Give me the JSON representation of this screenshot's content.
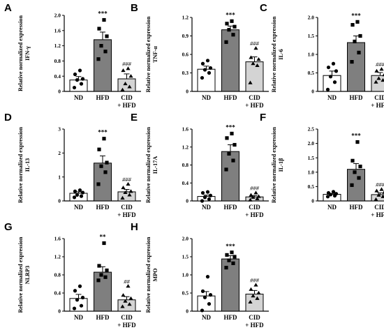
{
  "categories": [
    {
      "line1": "ND",
      "line2": ""
    },
    {
      "line1": "HFD",
      "line2": ""
    },
    {
      "line1": "CID",
      "line2": "+ HFD"
    }
  ],
  "colors": {
    "bar_nd": "#ffffff",
    "bar_hfd": "#7f7f7f",
    "bar_cid": "#d4d4d4",
    "stroke": "#000000"
  },
  "markers": [
    "circle",
    "square",
    "triangle"
  ],
  "chart_data": [
    {
      "panel": "A",
      "type": "bar",
      "ylabel_main": "Relative normalized expression",
      "ylabel_gene": "IFN-γ",
      "ylim": [
        0,
        2.0
      ],
      "yticks": [
        "0",
        "0.4",
        "0.8",
        "1.2",
        "1.6",
        "2.0"
      ],
      "ytick_values": [
        0,
        0.4,
        0.8,
        1.2,
        1.6,
        2.0
      ],
      "values": [
        0.3,
        1.36,
        0.33
      ],
      "errors": [
        0.09,
        0.2,
        0.13
      ],
      "points": [
        [
          0.1,
          0.2,
          0.3,
          0.33,
          0.45,
          0.55
        ],
        [
          0.85,
          1.05,
          1.2,
          1.45,
          1.65,
          1.88
        ],
        [
          0.04,
          0.12,
          0.2,
          0.4,
          0.55,
          0.6
        ]
      ],
      "significance": [
        "",
        "***",
        "###"
      ]
    },
    {
      "panel": "B",
      "type": "bar",
      "ylabel_main": "Relative normalized expression",
      "ylabel_gene": "TNF-α",
      "ylim": [
        0,
        1.2
      ],
      "yticks": [
        "0",
        "0.3",
        "0.6",
        "0.9",
        "1.2"
      ],
      "ytick_values": [
        0,
        0.3,
        0.6,
        0.9,
        1.2
      ],
      "values": [
        0.36,
        1.0,
        0.48
      ],
      "errors": [
        0.05,
        0.06,
        0.08
      ],
      "points": [
        [
          0.22,
          0.3,
          0.35,
          0.38,
          0.45,
          0.5
        ],
        [
          0.8,
          0.92,
          1.0,
          1.05,
          1.1,
          1.14
        ],
        [
          0.14,
          0.42,
          0.45,
          0.52,
          0.55,
          0.7
        ]
      ],
      "significance": [
        "",
        "***",
        "###"
      ]
    },
    {
      "panel": "C",
      "type": "bar",
      "ylabel_main": "Relative normalized expression",
      "ylabel_gene": "IL-6",
      "ylim": [
        0,
        2.0
      ],
      "yticks": [
        "0",
        "0.5",
        "1.0",
        "1.5",
        "2.0"
      ],
      "ytick_values": [
        0,
        0.5,
        1.0,
        1.5,
        2.0
      ],
      "values": [
        0.43,
        1.32,
        0.43
      ],
      "errors": [
        0.12,
        0.18,
        0.08
      ],
      "points": [
        [
          0.05,
          0.25,
          0.4,
          0.55,
          0.65,
          0.75
        ],
        [
          0.8,
          1.05,
          1.35,
          1.5,
          1.8,
          1.88
        ],
        [
          0.25,
          0.3,
          0.35,
          0.45,
          0.55,
          0.6
        ]
      ],
      "significance": [
        "",
        "***",
        "###"
      ]
    },
    {
      "panel": "D",
      "type": "bar",
      "ylabel_main": "Relative normalized expression",
      "ylabel_gene": "IL-13",
      "ylim": [
        0,
        3
      ],
      "yticks": [
        "0",
        "1",
        "2",
        "3"
      ],
      "ytick_values": [
        0,
        1,
        2,
        3
      ],
      "values": [
        0.32,
        1.58,
        0.38
      ],
      "errors": [
        0.06,
        0.3,
        0.1
      ],
      "points": [
        [
          0.15,
          0.2,
          0.25,
          0.35,
          0.4,
          0.45
        ],
        [
          0.7,
          1.2,
          1.45,
          1.6,
          2.15,
          2.6
        ],
        [
          0.12,
          0.25,
          0.35,
          0.4,
          0.55,
          0.7
        ]
      ],
      "significance": [
        "",
        "***",
        "###"
      ]
    },
    {
      "panel": "E",
      "type": "bar",
      "ylabel_main": "Relative normalized expression",
      "ylabel_gene": "IL-17A",
      "ylim": [
        0,
        1.6
      ],
      "yticks": [
        "0",
        "0.4",
        "0.8",
        "1.2",
        "1.6"
      ],
      "ytick_values": [
        0,
        0.4,
        0.8,
        1.2,
        1.6
      ],
      "values": [
        0.1,
        1.1,
        0.09
      ],
      "errors": [
        0.03,
        0.15,
        0.03
      ],
      "points": [
        [
          0.0,
          0.04,
          0.08,
          0.12,
          0.18,
          0.2
        ],
        [
          0.7,
          0.9,
          1.05,
          1.25,
          1.4,
          1.5
        ],
        [
          0.02,
          0.05,
          0.08,
          0.1,
          0.13,
          0.18
        ]
      ],
      "significance": [
        "",
        "***",
        "###"
      ]
    },
    {
      "panel": "F",
      "type": "bar",
      "ylabel_main": "Relative normalized expression",
      "ylabel_gene": "IL-1β",
      "ylim": [
        0,
        2.5
      ],
      "yticks": [
        "0",
        "0.5",
        "1.0",
        "1.5",
        "2.0",
        "2.5"
      ],
      "ytick_values": [
        0,
        0.5,
        1.0,
        1.5,
        2.0,
        2.5
      ],
      "values": [
        0.23,
        1.1,
        0.22
      ],
      "errors": [
        0.03,
        0.2,
        0.06
      ],
      "points": [
        [
          0.15,
          0.18,
          0.22,
          0.25,
          0.28,
          0.32
        ],
        [
          0.55,
          0.8,
          1.0,
          1.2,
          1.4,
          2.05
        ],
        [
          0.05,
          0.15,
          0.2,
          0.3,
          0.35,
          0.4
        ]
      ],
      "significance": [
        "",
        "***",
        "###"
      ]
    },
    {
      "panel": "G",
      "type": "bar",
      "ylabel_main": "Relative normalized expression",
      "ylabel_gene": "NLRP3",
      "ylim": [
        0,
        1.6
      ],
      "yticks": [
        "0",
        "0.4",
        "0.8",
        "1.2",
        "1.6"
      ],
      "ytick_values": [
        0,
        0.4,
        0.8,
        1.2,
        1.6
      ],
      "values": [
        0.28,
        0.86,
        0.25
      ],
      "errors": [
        0.09,
        0.12,
        0.07
      ],
      "points": [
        [
          0.06,
          0.12,
          0.25,
          0.3,
          0.45,
          0.55
        ],
        [
          0.68,
          0.75,
          0.8,
          0.9,
          1.0,
          1.5
        ],
        [
          0.1,
          0.15,
          0.22,
          0.28,
          0.35,
          0.55
        ]
      ],
      "significance": [
        "",
        "**",
        "##"
      ]
    },
    {
      "panel": "H",
      "type": "bar",
      "ylabel_main": "Relative normalized expression",
      "ylabel_gene": "MPO",
      "ylim": [
        0,
        2.0
      ],
      "yticks": [
        "0",
        "0.5",
        "1.0",
        "1.5",
        "2.0"
      ],
      "ytick_values": [
        0,
        0.5,
        1.0,
        1.5,
        2.0
      ],
      "values": [
        0.42,
        1.44,
        0.47
      ],
      "errors": [
        0.12,
        0.09,
        0.1
      ],
      "points": [
        [
          0.02,
          0.2,
          0.38,
          0.45,
          0.55,
          0.95
        ],
        [
          1.2,
          1.32,
          1.4,
          1.5,
          1.55,
          1.62
        ],
        [
          0.25,
          0.35,
          0.42,
          0.5,
          0.6,
          0.72
        ]
      ],
      "significance": [
        "",
        "***",
        "###"
      ]
    }
  ]
}
